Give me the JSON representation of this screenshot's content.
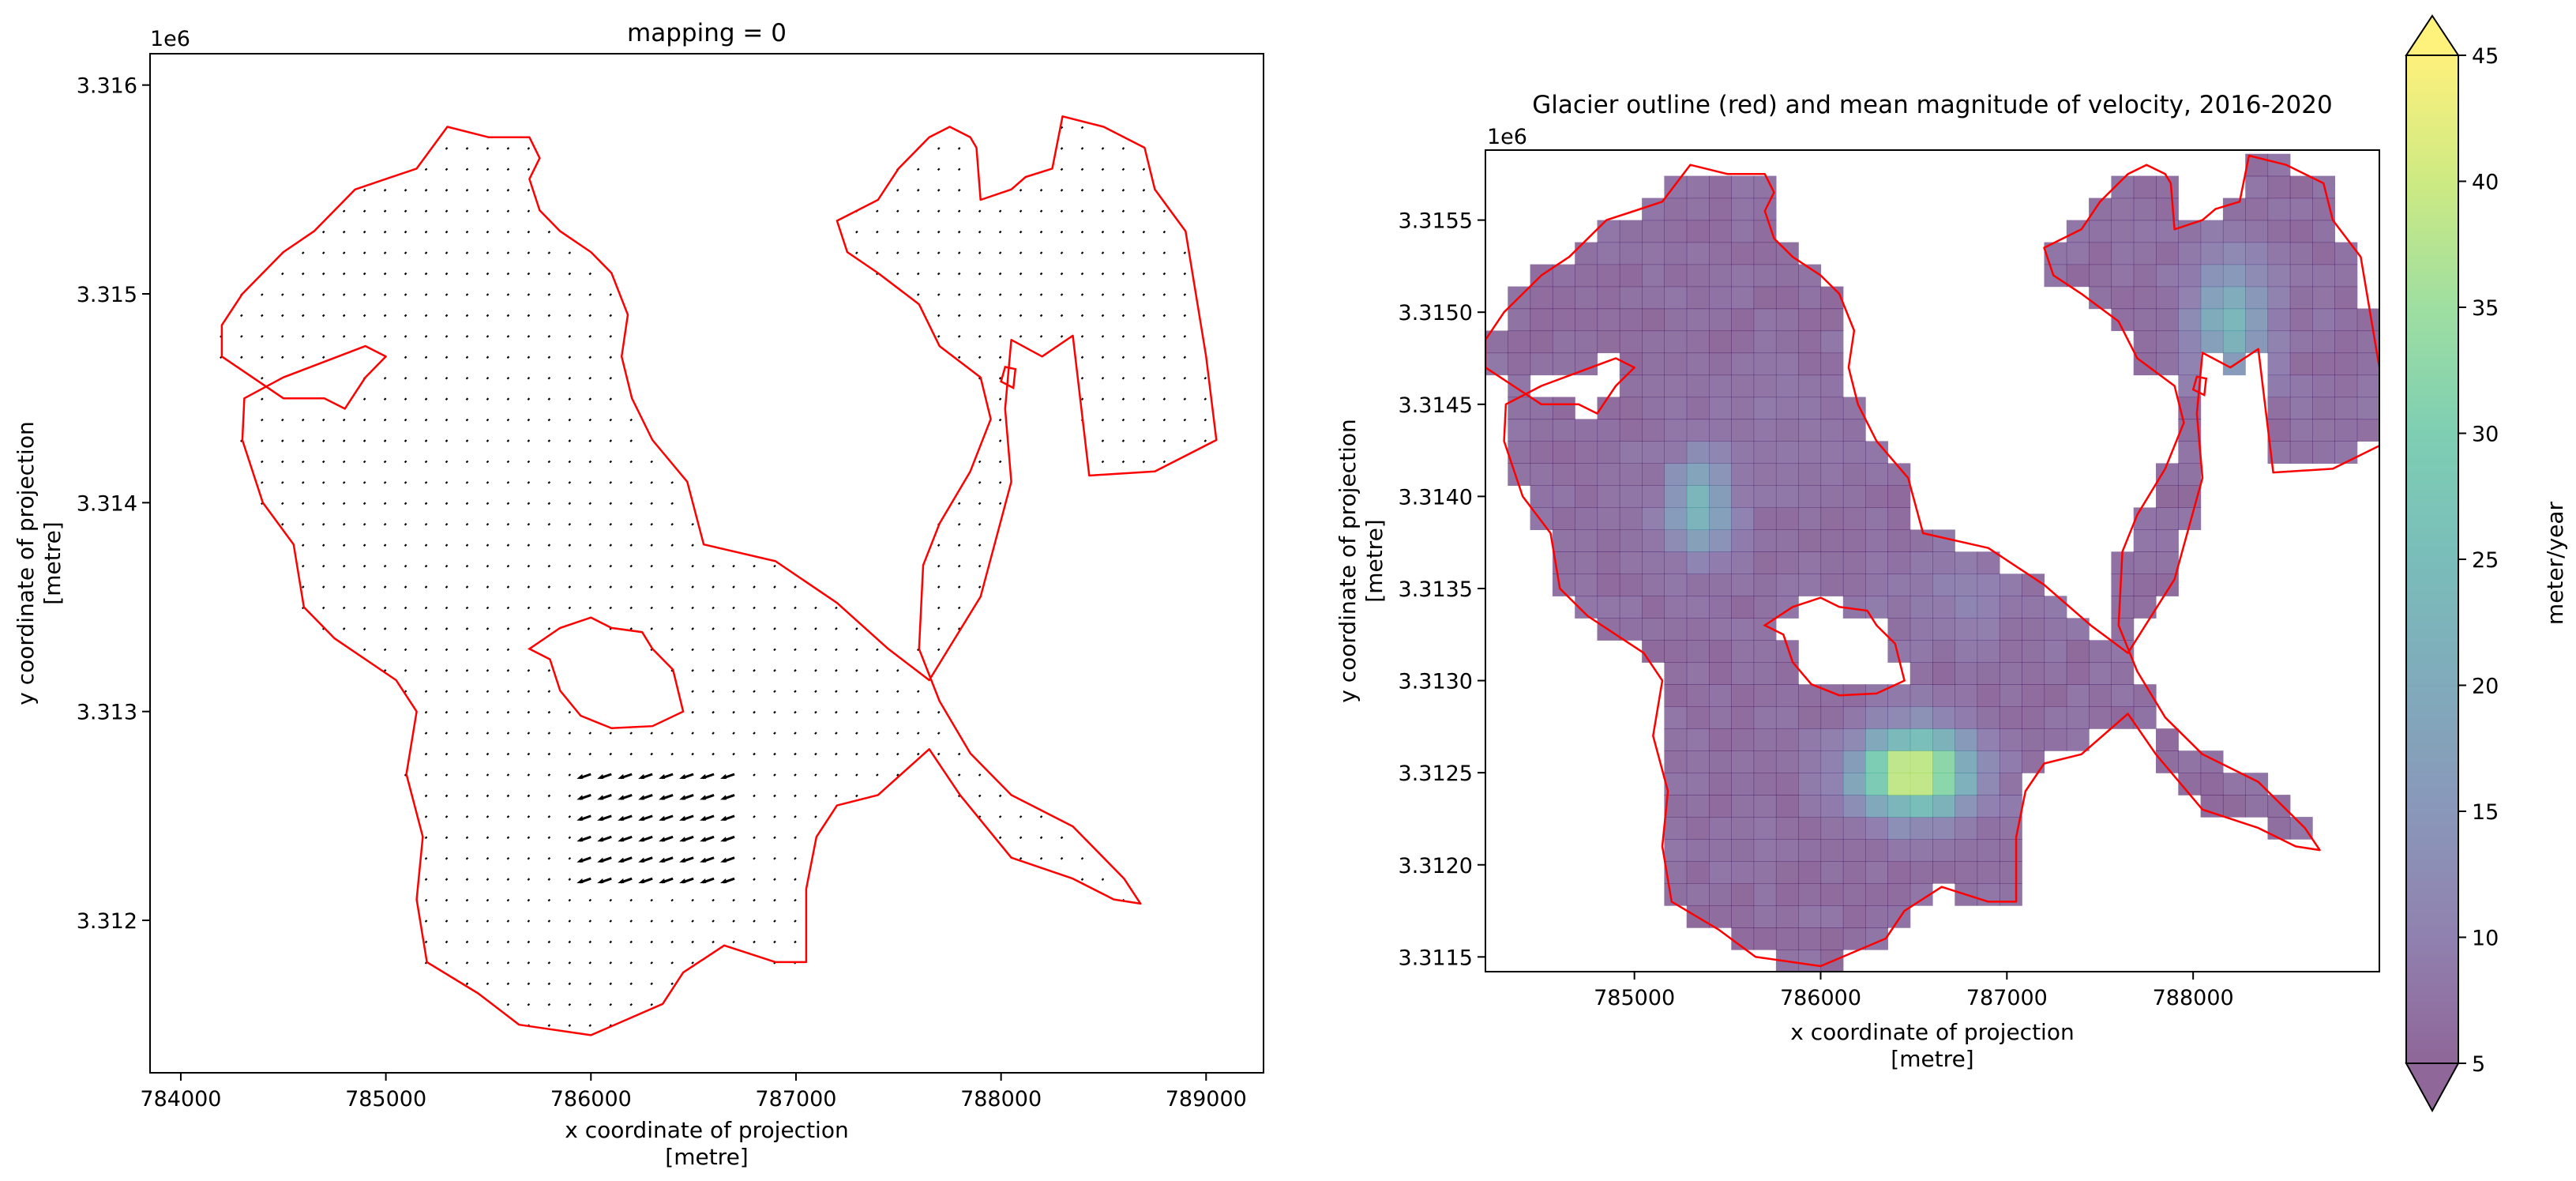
{
  "chart_data": [
    {
      "type": "quiver",
      "title": "mapping = 0",
      "xlabel": "x coordinate of projection",
      "xlabel_unit": "[metre]",
      "ylabel": "y coordinate of projection",
      "ylabel_unit": "[metre]",
      "offset_text": "1e6",
      "xlim": [
        783850,
        789280
      ],
      "ylim": [
        3311270,
        3316150
      ],
      "xticks": [
        784000,
        785000,
        786000,
        787000,
        788000,
        789000
      ],
      "xtick_labels": [
        "784000",
        "785000",
        "786000",
        "787000",
        "788000",
        "789000"
      ],
      "yticks": [
        3312000,
        3313000,
        3314000,
        3315000,
        3316000
      ],
      "ytick_labels": [
        "3.312",
        "3.313",
        "3.314",
        "3.315",
        "3.316"
      ],
      "arrow_spacing": 100,
      "outline_color": "#ff0000",
      "arrow_color": "#000000",
      "fast_zone": {
        "x": [
          786000,
          786700
        ],
        "y": [
          3312200,
          3312750
        ]
      },
      "outline": [
        [
          784200,
          3314850
        ],
        [
          784300,
          3315000
        ],
        [
          784500,
          3315200
        ],
        [
          784650,
          3315300
        ],
        [
          784850,
          3315500
        ],
        [
          785000,
          3315550
        ],
        [
          785150,
          3315600
        ],
        [
          785300,
          3315800
        ],
        [
          785500,
          3315750
        ],
        [
          785700,
          3315750
        ],
        [
          785750,
          3315650
        ],
        [
          785700,
          3315550
        ],
        [
          785750,
          3315400
        ],
        [
          785850,
          3315300
        ],
        [
          786000,
          3315200
        ],
        [
          786100,
          3315100
        ],
        [
          786180,
          3314900
        ],
        [
          786150,
          3314700
        ],
        [
          786200,
          3314500
        ],
        [
          786300,
          3314300
        ],
        [
          786470,
          3314100
        ],
        [
          786550,
          3313800
        ],
        [
          786900,
          3313720
        ],
        [
          787200,
          3313520
        ],
        [
          787450,
          3313300
        ],
        [
          787650,
          3313150
        ],
        [
          787900,
          3313550
        ],
        [
          788050,
          3314100
        ],
        [
          788020,
          3314450
        ],
        [
          788050,
          3314780
        ],
        [
          788200,
          3314700
        ],
        [
          788350,
          3314800
        ],
        [
          788430,
          3314130
        ],
        [
          788750,
          3314150
        ],
        [
          789050,
          3314300
        ],
        [
          789000,
          3314700
        ],
        [
          788950,
          3315000
        ],
        [
          788900,
          3315300
        ],
        [
          788750,
          3315500
        ],
        [
          788700,
          3315700
        ],
        [
          788500,
          3315800
        ],
        [
          788300,
          3315850
        ],
        [
          788250,
          3315600
        ],
        [
          788120,
          3315560
        ],
        [
          788050,
          3315500
        ],
        [
          787900,
          3315450
        ],
        [
          787880,
          3315700
        ],
        [
          787850,
          3315750
        ],
        [
          787750,
          3315800
        ],
        [
          787650,
          3315750
        ],
        [
          787500,
          3315600
        ],
        [
          787400,
          3315450
        ],
        [
          787200,
          3315350
        ],
        [
          787250,
          3315200
        ],
        [
          787400,
          3315100
        ],
        [
          787600,
          3314950
        ],
        [
          787700,
          3314750
        ],
        [
          787900,
          3314600
        ],
        [
          787950,
          3314400
        ],
        [
          787850,
          3314150
        ],
        [
          787700,
          3313900
        ],
        [
          787620,
          3313700
        ],
        [
          787600,
          3313300
        ],
        [
          787700,
          3313050
        ],
        [
          787850,
          3312800
        ],
        [
          788050,
          3312600
        ],
        [
          788350,
          3312450
        ],
        [
          788600,
          3312200
        ],
        [
          788680,
          3312080
        ],
        [
          788550,
          3312100
        ],
        [
          788350,
          3312200
        ],
        [
          788050,
          3312300
        ],
        [
          787800,
          3312600
        ],
        [
          787650,
          3312820
        ],
        [
          787400,
          3312600
        ],
        [
          787200,
          3312550
        ],
        [
          787100,
          3312400
        ],
        [
          787050,
          3312150
        ],
        [
          787050,
          3311800
        ],
        [
          786900,
          3311800
        ],
        [
          786650,
          3311880
        ],
        [
          786450,
          3311750
        ],
        [
          786350,
          3311600
        ],
        [
          786000,
          3311450
        ],
        [
          785650,
          3311500
        ],
        [
          785450,
          3311650
        ],
        [
          785200,
          3311800
        ],
        [
          785150,
          3312100
        ],
        [
          785180,
          3312400
        ],
        [
          785100,
          3312700
        ],
        [
          785150,
          3313000
        ],
        [
          785050,
          3313150
        ],
        [
          784750,
          3313350
        ],
        [
          784600,
          3313500
        ],
        [
          784550,
          3313800
        ],
        [
          784400,
          3314000
        ],
        [
          784300,
          3314300
        ],
        [
          784310,
          3314500
        ],
        [
          784500,
          3314600
        ],
        [
          784900,
          3314750
        ],
        [
          785000,
          3314700
        ],
        [
          784900,
          3314600
        ],
        [
          784800,
          3314450
        ],
        [
          784700,
          3314500
        ],
        [
          784500,
          3314500
        ],
        [
          784350,
          3314600
        ],
        [
          784200,
          3314700
        ],
        [
          784200,
          3314850
        ]
      ],
      "holes": [
        [
          [
            785700,
            3313300
          ],
          [
            785850,
            3313400
          ],
          [
            786000,
            3313450
          ],
          [
            786100,
            3313400
          ],
          [
            786250,
            3313380
          ],
          [
            786300,
            3313300
          ],
          [
            786400,
            3313200
          ],
          [
            786450,
            3313000
          ],
          [
            786300,
            3312930
          ],
          [
            786100,
            3312920
          ],
          [
            785950,
            3312980
          ],
          [
            785850,
            3313100
          ],
          [
            785800,
            3313250
          ],
          [
            785700,
            3313300
          ]
        ],
        [
          [
            788000,
            3314580
          ],
          [
            788020,
            3314650
          ],
          [
            788070,
            3314640
          ],
          [
            788060,
            3314550
          ],
          [
            788000,
            3314580
          ]
        ]
      ]
    },
    {
      "type": "heatmap",
      "title": "Glacier outline (red) and mean magnitude of velocity, 2016-2020",
      "xlabel": "x coordinate of projection",
      "xlabel_unit": "[metre]",
      "ylabel": "y coordinate of projection",
      "ylabel_unit": "[metre]",
      "offset_text": "1e6",
      "xlim": [
        784200,
        789000
      ],
      "ylim": [
        3311420,
        3315880
      ],
      "xticks": [
        785000,
        786000,
        787000,
        788000
      ],
      "xtick_labels": [
        "785000",
        "786000",
        "787000",
        "788000"
      ],
      "yticks": [
        3311500,
        3312000,
        3312500,
        3313000,
        3313500,
        3314000,
        3314500,
        3315000,
        3315500
      ],
      "ytick_labels": [
        "3.3115",
        "3.3120",
        "3.3125",
        "3.3130",
        "3.3135",
        "3.3140",
        "3.3145",
        "3.3150",
        "3.3155"
      ],
      "cell_size": 120,
      "cell_alpha": 0.6,
      "background_value": 7,
      "colorbar": {
        "label": "meter/year",
        "min": 5,
        "max": 45,
        "ticks": [
          5,
          10,
          15,
          20,
          25,
          30,
          35,
          40,
          45
        ],
        "extend": "both",
        "colormap": "viridis"
      },
      "hotspots": [
        {
          "x": 786500,
          "y": 3312500,
          "peak": 43,
          "sx": 300,
          "sy": 220
        },
        {
          "x": 785350,
          "y": 3313950,
          "peak": 23,
          "sx": 170,
          "sy": 260
        },
        {
          "x": 788200,
          "y": 3314950,
          "peak": 23,
          "sx": 200,
          "sy": 320
        },
        {
          "x": 786700,
          "y": 3313450,
          "peak": 10,
          "sx": 400,
          "sy": 220
        },
        {
          "x": 785800,
          "y": 3314300,
          "peak": 8,
          "sx": 380,
          "sy": 300
        }
      ],
      "outline_color": "#ff0000"
    }
  ]
}
